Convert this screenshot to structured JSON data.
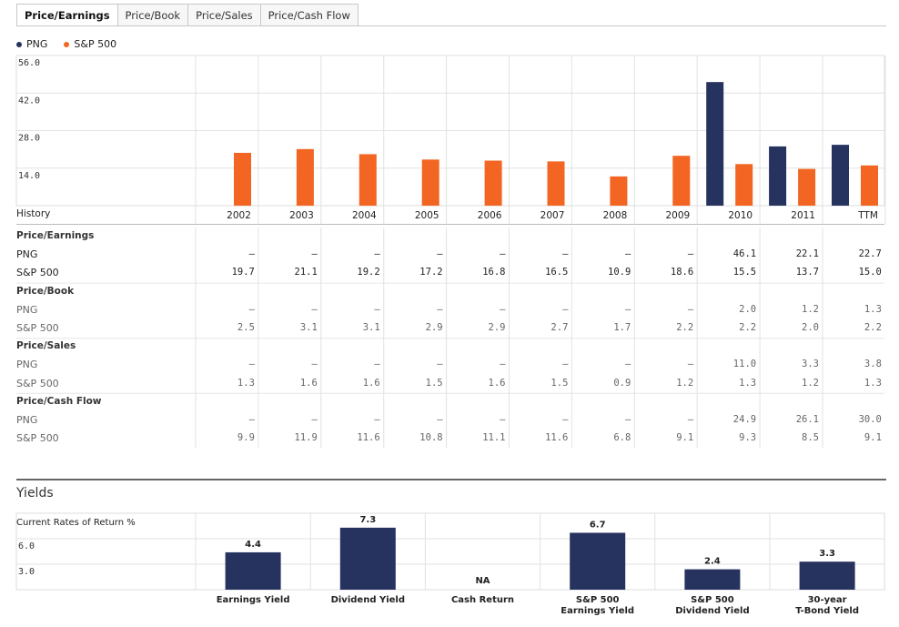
{
  "tabs": [
    "Price/Earnings",
    "Price/Book",
    "Price/Sales",
    "Price/Cash Flow"
  ],
  "active_tab": "Price/Earnings",
  "legend": [
    {
      "name": "PNG",
      "color": "#26335e"
    },
    {
      "name": "S&P 500",
      "color": "#f26522"
    }
  ],
  "chart_data": [
    {
      "type": "bar",
      "title": "",
      "xlabel": "History",
      "categories": [
        "2002",
        "2003",
        "2004",
        "2005",
        "2006",
        "2007",
        "2008",
        "2009",
        "2010",
        "2011",
        "TTM"
      ],
      "series": [
        {
          "name": "PNG",
          "color": "#26335e",
          "values": [
            null,
            null,
            null,
            null,
            null,
            null,
            null,
            null,
            46.1,
            22.1,
            22.7
          ]
        },
        {
          "name": "S&P 500",
          "color": "#f26522",
          "values": [
            19.7,
            21.1,
            19.2,
            17.2,
            16.8,
            16.5,
            10.9,
            18.6,
            15.5,
            13.7,
            15.0
          ]
        }
      ],
      "yticks": [
        "56.0",
        "42.0",
        "28.0",
        "14.0"
      ],
      "ylim": [
        0,
        56
      ],
      "grid": true
    },
    {
      "type": "bar",
      "title": "Yields",
      "ylabel": "Current Rates of Return %",
      "categories": [
        "Earnings Yield",
        "Dividend Yield",
        "Cash Return",
        "S&P 500\nEarnings Yield",
        "S&P 500\nDividend Yield",
        "30-year\nT-Bond Yield"
      ],
      "values": [
        4.4,
        7.3,
        null,
        6.7,
        2.4,
        3.3
      ],
      "value_labels": [
        "4.4",
        "7.3",
        "NA",
        "6.7",
        "2.4",
        "3.3"
      ],
      "yticks": [
        "6.0",
        "3.0"
      ],
      "ylim": [
        0,
        9
      ],
      "color": "#26335e"
    }
  ],
  "table": {
    "years": [
      "2002",
      "2003",
      "2004",
      "2005",
      "2006",
      "2007",
      "2008",
      "2009",
      "2010",
      "2011",
      "TTM"
    ],
    "sections": [
      {
        "title": "Price/Earnings",
        "rows": [
          {
            "label": "PNG",
            "values": [
              "—",
              "—",
              "—",
              "—",
              "—",
              "—",
              "—",
              "—",
              "46.1",
              "22.1",
              "22.7"
            ]
          },
          {
            "label": "S&P 500",
            "values": [
              "19.7",
              "21.1",
              "19.2",
              "17.2",
              "16.8",
              "16.5",
              "10.9",
              "18.6",
              "15.5",
              "13.7",
              "15.0"
            ]
          }
        ]
      },
      {
        "title": "Price/Book",
        "rows": [
          {
            "label": "PNG",
            "values": [
              "—",
              "—",
              "—",
              "—",
              "—",
              "—",
              "—",
              "—",
              "2.0",
              "1.2",
              "1.3"
            ]
          },
          {
            "label": "S&P 500",
            "values": [
              "2.5",
              "3.1",
              "3.1",
              "2.9",
              "2.9",
              "2.7",
              "1.7",
              "2.2",
              "2.2",
              "2.0",
              "2.2"
            ]
          }
        ]
      },
      {
        "title": "Price/Sales",
        "rows": [
          {
            "label": "PNG",
            "values": [
              "—",
              "—",
              "—",
              "—",
              "—",
              "—",
              "—",
              "—",
              "11.0",
              "3.3",
              "3.8"
            ]
          },
          {
            "label": "S&P 500",
            "values": [
              "1.3",
              "1.6",
              "1.6",
              "1.5",
              "1.6",
              "1.5",
              "0.9",
              "1.2",
              "1.3",
              "1.2",
              "1.3"
            ]
          }
        ]
      },
      {
        "title": "Price/Cash Flow",
        "rows": [
          {
            "label": "PNG",
            "values": [
              "—",
              "—",
              "—",
              "—",
              "—",
              "—",
              "—",
              "—",
              "24.9",
              "26.1",
              "30.0"
            ]
          },
          {
            "label": "S&P 500",
            "values": [
              "9.9",
              "11.9",
              "11.6",
              "10.8",
              "11.1",
              "11.6",
              "6.8",
              "9.1",
              "9.3",
              "8.5",
              "9.1"
            ]
          }
        ]
      }
    ]
  }
}
